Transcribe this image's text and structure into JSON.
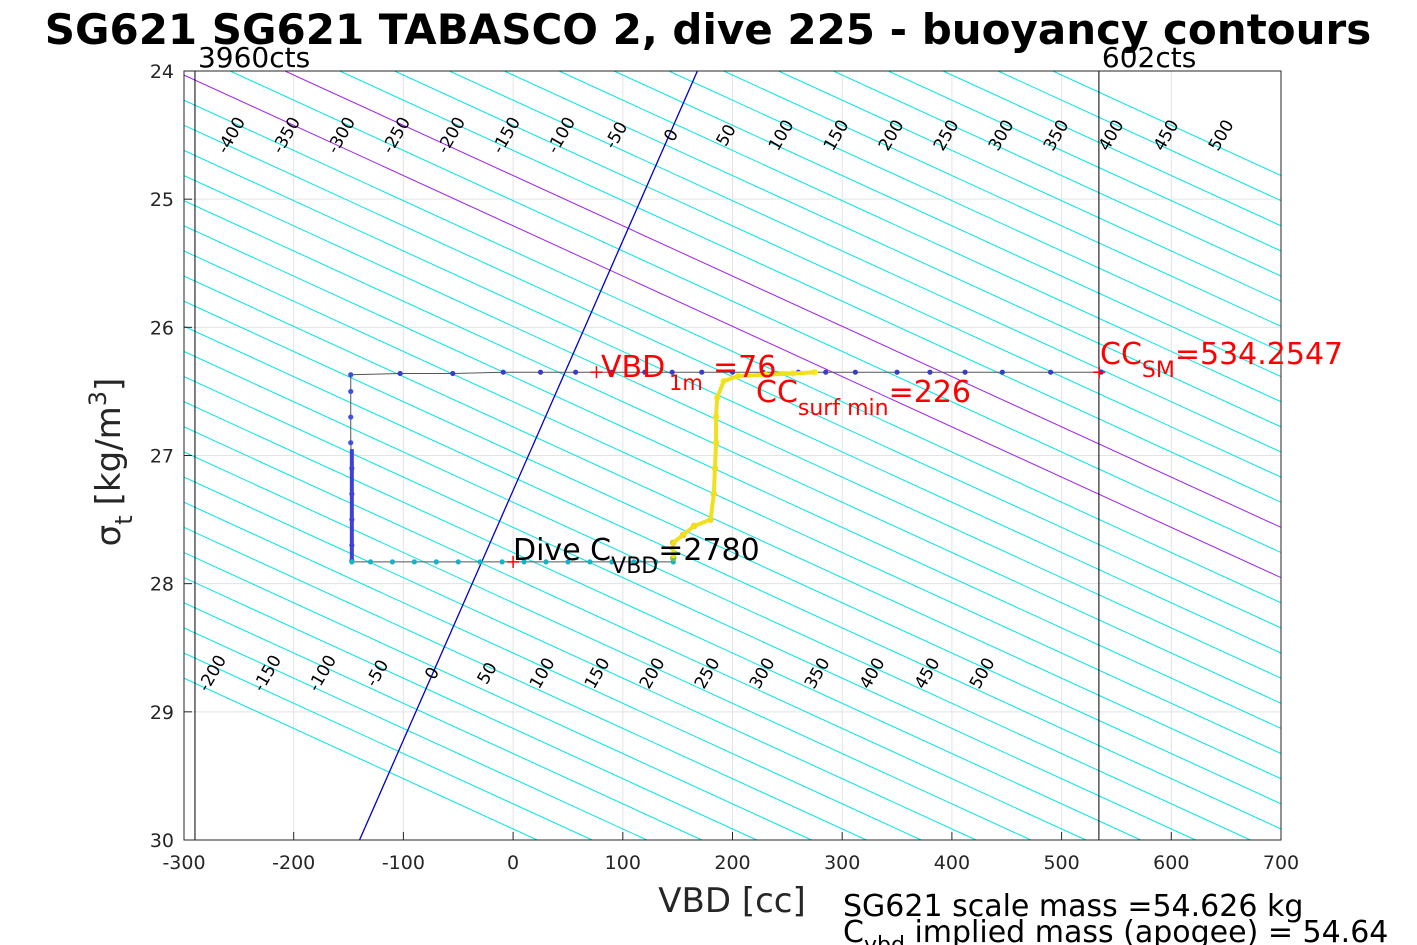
{
  "chart_data": {
    "type": "line",
    "title": "SG621 SG621 TABASCO 2, dive 225 - buoyancy contours",
    "xlabel": "VBD [cc]",
    "ylabel_main": "σ",
    "ylabel_sub": "t",
    "ylabel_units": "[kg/m",
    "ylabel_sup": "3",
    "ylabel_close": "]",
    "xlim": [
      -300,
      700
    ],
    "ylim": [
      24,
      30
    ],
    "y_reversed": true,
    "grid": true,
    "xticks": [
      "-300",
      "-200",
      "-100",
      "0",
      "100",
      "200",
      "300",
      "400",
      "500",
      "600",
      "700"
    ],
    "yticks": [
      "24",
      "25",
      "26",
      "27",
      "28",
      "29",
      "30"
    ],
    "xtick_values": [
      -300,
      -200,
      -100,
      0,
      100,
      200,
      300,
      400,
      500,
      600,
      700
    ],
    "ytick_values": [
      24,
      25,
      26,
      27,
      28,
      29,
      30
    ],
    "contour_step": 50,
    "contour_slope_cc_per_sigma": 255,
    "contour_upper_labels": [
      "-400",
      "-350",
      "-300",
      "-250",
      "-200",
      "-150",
      "-100",
      "-50",
      "0",
      "50",
      "100",
      "150",
      "200",
      "250",
      "300",
      "350",
      "400",
      "450",
      "500"
    ],
    "contour_upper_values": [
      -400,
      -350,
      -300,
      -250,
      -200,
      -150,
      -100,
      -50,
      0,
      50,
      100,
      150,
      200,
      250,
      300,
      350,
      400,
      450,
      500
    ],
    "contour_lower_labels": [
      "-200",
      "-150",
      "-100",
      "-50",
      "0",
      "50",
      "100",
      "150",
      "200",
      "250",
      "300",
      "350",
      "400",
      "450",
      "500"
    ],
    "contour_lower_values": [
      -200,
      -150,
      -100,
      -50,
      0,
      50,
      100,
      150,
      200,
      250,
      300,
      350,
      400,
      450,
      500
    ],
    "contour_colors": {
      "normal": "#00e5e5",
      "zero": "#0000cc",
      "special": "#a020f0"
    },
    "special_contours": [
      100,
      200
    ],
    "vbd_limits": [
      {
        "label": "3960cts",
        "vbd": -290
      },
      {
        "label": "602cts",
        "vbd": 534
      }
    ],
    "dive_series": {
      "name": "dive",
      "descent": [
        {
          "vbd": 536,
          "sigma": 26.35
        },
        {
          "vbd": 490,
          "sigma": 26.35
        },
        {
          "vbd": 446,
          "sigma": 26.35
        },
        {
          "vbd": 412,
          "sigma": 26.35
        },
        {
          "vbd": 380,
          "sigma": 26.35
        },
        {
          "vbd": 350,
          "sigma": 26.35
        },
        {
          "vbd": 312,
          "sigma": 26.35
        },
        {
          "vbd": 285,
          "sigma": 26.35
        },
        {
          "vbd": 260,
          "sigma": 26.35
        },
        {
          "vbd": 228,
          "sigma": 26.35
        },
        {
          "vbd": 200,
          "sigma": 26.35
        },
        {
          "vbd": 172,
          "sigma": 26.35
        },
        {
          "vbd": 145,
          "sigma": 26.35
        },
        {
          "vbd": 120,
          "sigma": 26.35
        },
        {
          "vbd": 90,
          "sigma": 26.35
        },
        {
          "vbd": 57,
          "sigma": 26.35
        },
        {
          "vbd": 25,
          "sigma": 26.35
        },
        {
          "vbd": -9,
          "sigma": 26.35
        },
        {
          "vbd": -55,
          "sigma": 26.36
        },
        {
          "vbd": -103,
          "sigma": 26.36
        },
        {
          "vbd": -148,
          "sigma": 26.37
        },
        {
          "vbd": -148,
          "sigma": 26.5
        },
        {
          "vbd": -148,
          "sigma": 26.7
        },
        {
          "vbd": -148,
          "sigma": 26.9
        },
        {
          "vbd": -147,
          "sigma": 27.1
        },
        {
          "vbd": -147,
          "sigma": 27.3
        },
        {
          "vbd": -147,
          "sigma": 27.5
        },
        {
          "vbd": -147,
          "sigma": 27.7
        },
        {
          "vbd": -147,
          "sigma": 27.82
        }
      ],
      "bottom": [
        {
          "vbd": -147,
          "sigma": 27.83
        },
        {
          "vbd": -130,
          "sigma": 27.83
        },
        {
          "vbd": -110,
          "sigma": 27.83
        },
        {
          "vbd": -90,
          "sigma": 27.83
        },
        {
          "vbd": -70,
          "sigma": 27.83
        },
        {
          "vbd": -50,
          "sigma": 27.83
        },
        {
          "vbd": -30,
          "sigma": 27.83
        },
        {
          "vbd": -10,
          "sigma": 27.83
        },
        {
          "vbd": 10,
          "sigma": 27.83
        },
        {
          "vbd": 30,
          "sigma": 27.83
        },
        {
          "vbd": 50,
          "sigma": 27.83
        },
        {
          "vbd": 70,
          "sigma": 27.83
        },
        {
          "vbd": 90,
          "sigma": 27.83
        },
        {
          "vbd": 110,
          "sigma": 27.83
        },
        {
          "vbd": 130,
          "sigma": 27.83
        },
        {
          "vbd": 146,
          "sigma": 27.83
        }
      ],
      "ascent": [
        {
          "vbd": 146,
          "sigma": 27.8
        },
        {
          "vbd": 146,
          "sigma": 27.68
        },
        {
          "vbd": 155,
          "sigma": 27.62
        },
        {
          "vbd": 165,
          "sigma": 27.55
        },
        {
          "vbd": 180,
          "sigma": 27.5
        },
        {
          "vbd": 183,
          "sigma": 27.3
        },
        {
          "vbd": 184,
          "sigma": 27.1
        },
        {
          "vbd": 185,
          "sigma": 26.9
        },
        {
          "vbd": 185,
          "sigma": 26.7
        },
        {
          "vbd": 186,
          "sigma": 26.55
        },
        {
          "vbd": 192,
          "sigma": 26.42
        },
        {
          "vbd": 205,
          "sigma": 26.38
        },
        {
          "vbd": 230,
          "sigma": 26.37
        },
        {
          "vbd": 255,
          "sigma": 26.36
        },
        {
          "vbd": 275,
          "sigma": 26.35
        }
      ]
    },
    "markers": [
      {
        "name": "VBD 1m",
        "vbd": 76,
        "sigma": 26.35
      },
      {
        "name": "CC SM",
        "vbd": 534.2547,
        "sigma": 26.35
      },
      {
        "name": "Dive C VBD",
        "vbd": 0,
        "sigma": 27.83
      }
    ],
    "annotations": {
      "vbd1m_main": "VBD",
      "vbd1m_sub": "1m",
      "vbd1m_value": "=76",
      "ccsm_main": "CC",
      "ccsm_sub": "SM",
      "ccsm_value": "=534.2547",
      "ccsurf_main": "CC",
      "ccsurf_sub": "surf min",
      "ccsurf_value": "=226",
      "divec_main": "Dive C",
      "divec_sub": "VBD",
      "divec_value": "=2780",
      "scale_mass": "SG621 scale mass =54.626 kg",
      "implied_main": "C",
      "implied_sub": "vbd",
      "implied_rest": " implied mass (apogee) = 54.64"
    }
  }
}
